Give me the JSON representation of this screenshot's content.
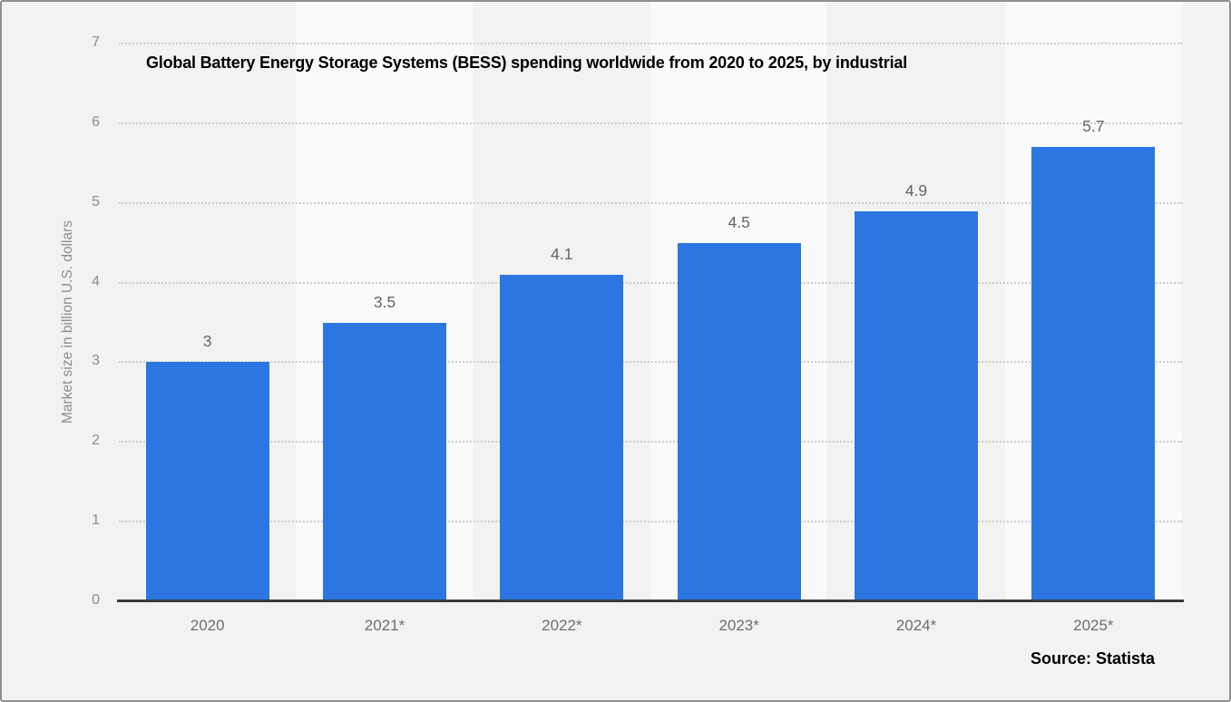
{
  "chart_data": {
    "type": "bar",
    "title": "Global Battery Energy Storage Systems (BESS) spending worldwide from 2020 to 2025, by industrial",
    "ylabel": "Market size in billion U.S. dollars",
    "xlabel": "",
    "categories": [
      "2020",
      "2021*",
      "2022*",
      "2023*",
      "2024*",
      "2025*"
    ],
    "values": [
      3,
      3.5,
      4.1,
      4.5,
      4.9,
      5.7
    ],
    "value_labels": [
      "3",
      "3.5",
      "4.1",
      "4.5",
      "4.9",
      "5.7"
    ],
    "ylim": [
      0,
      7
    ],
    "yticks": [
      0,
      1,
      2,
      3,
      4,
      5,
      6,
      7
    ],
    "grid": "horizontal-dotted",
    "legend": "none",
    "source": "Source: Statista",
    "colors": {
      "bar": "#2b76e0",
      "band_dark": "#f2f2f2",
      "band_light": "#fafafa",
      "grid": "#cccccc",
      "axis_line": "#3b3b3b",
      "ytick_label": "#8e8e8e",
      "value_label": "#666666",
      "x_label": "#6e6e6e",
      "y_axis_title": "#8c8c8c",
      "background": "#f2f2f2"
    }
  }
}
